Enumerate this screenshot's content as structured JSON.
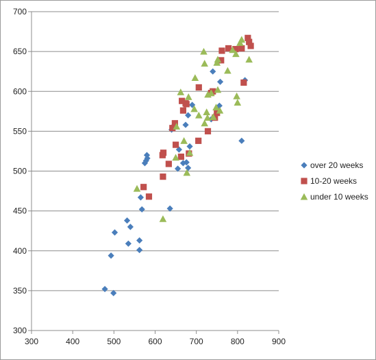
{
  "chart_data": {
    "type": "scatter",
    "title": "",
    "xlabel": "",
    "ylabel": "",
    "xlim": [
      300,
      900
    ],
    "ylim": [
      300,
      700
    ],
    "x_ticks": [
      300,
      400,
      500,
      600,
      700,
      800,
      900
    ],
    "y_ticks": [
      300,
      350,
      400,
      450,
      500,
      550,
      600,
      650,
      700
    ],
    "grid": "horizontal major gridlines",
    "legend_position": "right",
    "series": [
      {
        "name": "over 20 weeks",
        "marker": "diamond",
        "color": "#4A7EBB",
        "points": [
          [
            478,
            352
          ],
          [
            499,
            347
          ],
          [
            493,
            394
          ],
          [
            502,
            423
          ],
          [
            532,
            438
          ],
          [
            535,
            409
          ],
          [
            540,
            430
          ],
          [
            562,
            413
          ],
          [
            562,
            401
          ],
          [
            565,
            467
          ],
          [
            568,
            452
          ],
          [
            575,
            510
          ],
          [
            578,
            513
          ],
          [
            581,
            516
          ],
          [
            580,
            520
          ],
          [
            636,
            453
          ],
          [
            645,
            557
          ],
          [
            640,
            552
          ],
          [
            655,
            503
          ],
          [
            658,
            527
          ],
          [
            668,
            510
          ],
          [
            674,
            558
          ],
          [
            676,
            511
          ],
          [
            680,
            504
          ],
          [
            680,
            570
          ],
          [
            684,
            531
          ],
          [
            690,
            583
          ],
          [
            736,
            565
          ],
          [
            740,
            625
          ],
          [
            752,
            578
          ],
          [
            756,
            582
          ],
          [
            758,
            612
          ],
          [
            810,
            538
          ],
          [
            818,
            614
          ]
        ]
      },
      {
        "name": "10-20 weeks",
        "marker": "square",
        "color": "#C0504D",
        "points": [
          [
            572,
            480
          ],
          [
            585,
            468
          ],
          [
            619,
            493
          ],
          [
            618,
            520
          ],
          [
            620,
            523
          ],
          [
            633,
            509
          ],
          [
            642,
            554
          ],
          [
            648,
            560
          ],
          [
            650,
            533
          ],
          [
            663,
            518
          ],
          [
            665,
            588
          ],
          [
            668,
            576
          ],
          [
            674,
            585
          ],
          [
            676,
            584
          ],
          [
            682,
            522
          ],
          [
            705,
            538
          ],
          [
            706,
            605
          ],
          [
            728,
            550
          ],
          [
            736,
            598
          ],
          [
            740,
            600
          ],
          [
            745,
            567
          ],
          [
            750,
            573
          ],
          [
            760,
            639
          ],
          [
            762,
            651
          ],
          [
            778,
            654
          ],
          [
            795,
            653
          ],
          [
            810,
            654
          ],
          [
            815,
            611
          ],
          [
            825,
            667
          ],
          [
            828,
            662
          ],
          [
            832,
            657
          ]
        ]
      },
      {
        "name": "under 10 weeks",
        "marker": "triangle",
        "color": "#9BBB59",
        "points": [
          [
            556,
            478
          ],
          [
            619,
            440
          ],
          [
            650,
            517
          ],
          [
            652,
            556
          ],
          [
            662,
            599
          ],
          [
            670,
            538
          ],
          [
            677,
            498
          ],
          [
            681,
            593
          ],
          [
            684,
            523
          ],
          [
            695,
            578
          ],
          [
            697,
            617
          ],
          [
            706,
            570
          ],
          [
            718,
            650
          ],
          [
            720,
            635
          ],
          [
            720,
            560
          ],
          [
            725,
            574
          ],
          [
            727,
            567
          ],
          [
            728,
            596
          ],
          [
            736,
            598
          ],
          [
            741,
            568
          ],
          [
            748,
            580
          ],
          [
            750,
            636
          ],
          [
            752,
            602
          ],
          [
            752,
            640
          ],
          [
            757,
            576
          ],
          [
            776,
            626
          ],
          [
            788,
            652
          ],
          [
            796,
            647
          ],
          [
            798,
            594
          ],
          [
            800,
            586
          ],
          [
            806,
            661
          ],
          [
            810,
            665
          ],
          [
            828,
            640
          ]
        ]
      }
    ]
  }
}
